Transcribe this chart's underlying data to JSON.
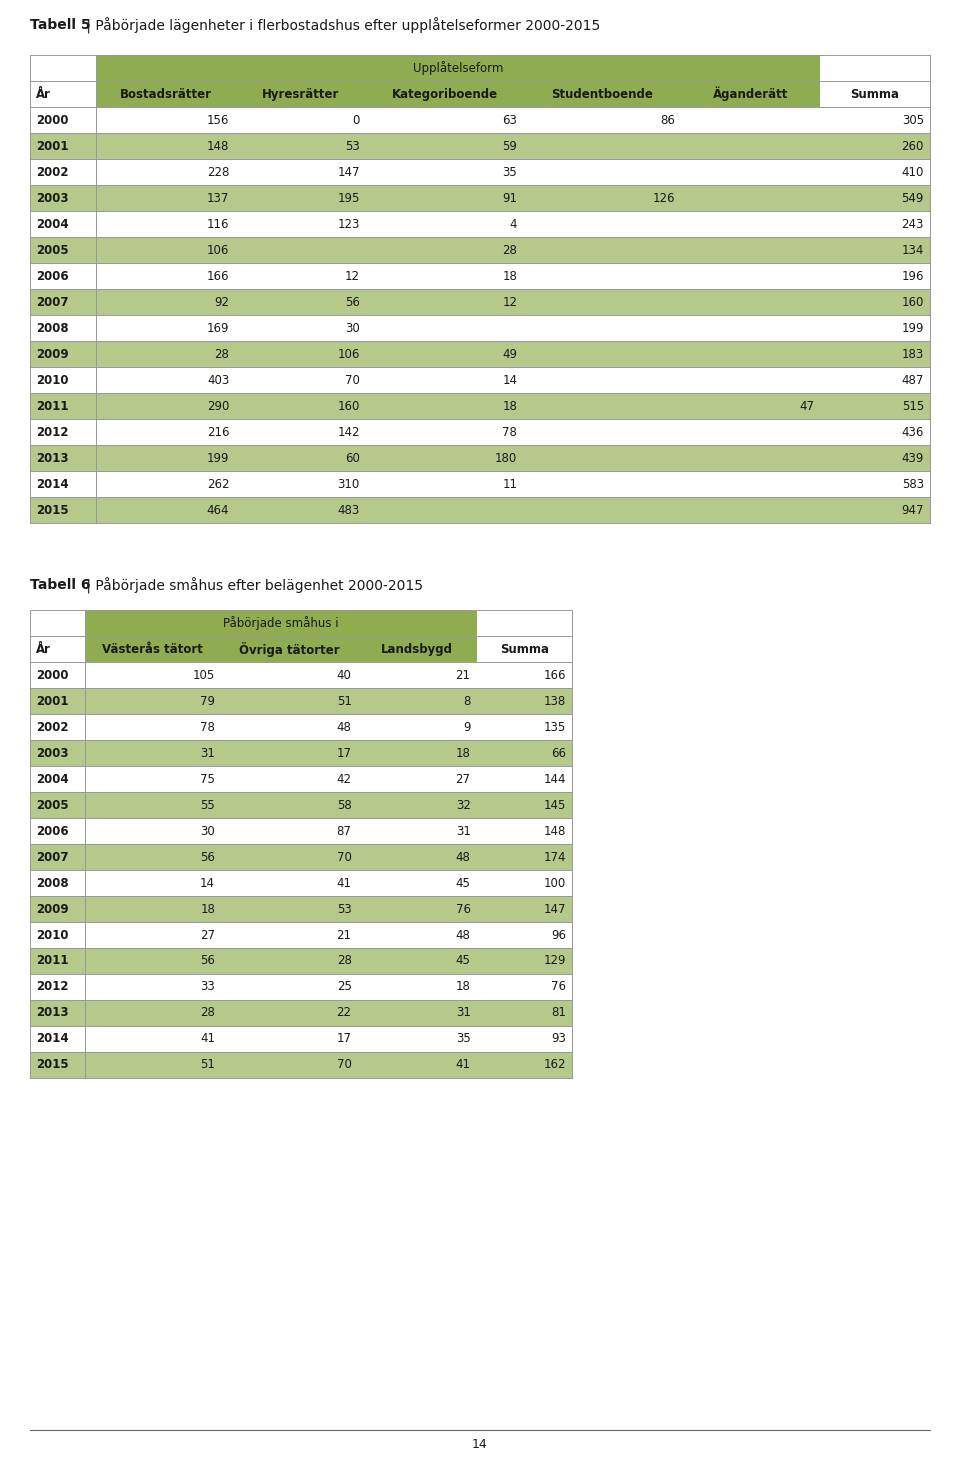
{
  "title1_bold": "Tabell 5",
  "title1_normal": " | Påbörjade lägenheter i flerbostadshus efter upplåtelseformer 2000-2015",
  "title2_bold": "Tabell 6",
  "title2_normal": " | Påbörjade småhus efter belägenhet 2000-2015",
  "table1_super_header": "Upplåtelseform",
  "table1_col_headers": [
    "År",
    "Bostadsrätter",
    "Hyresrätter",
    "Kategoriboende",
    "Studentboende",
    "Äganderätt",
    "Summa"
  ],
  "table1_data": [
    [
      "2000",
      "156",
      "0",
      "63",
      "86",
      "",
      "305"
    ],
    [
      "2001",
      "148",
      "53",
      "59",
      "",
      "",
      "260"
    ],
    [
      "2002",
      "228",
      "147",
      "35",
      "",
      "",
      "410"
    ],
    [
      "2003",
      "137",
      "195",
      "91",
      "126",
      "",
      "549"
    ],
    [
      "2004",
      "116",
      "123",
      "4",
      "",
      "",
      "243"
    ],
    [
      "2005",
      "106",
      "",
      "28",
      "",
      "",
      "134"
    ],
    [
      "2006",
      "166",
      "12",
      "18",
      "",
      "",
      "196"
    ],
    [
      "2007",
      "92",
      "56",
      "12",
      "",
      "",
      "160"
    ],
    [
      "2008",
      "169",
      "30",
      "",
      "",
      "",
      "199"
    ],
    [
      "2009",
      "28",
      "106",
      "49",
      "",
      "",
      "183"
    ],
    [
      "2010",
      "403",
      "70",
      "14",
      "",
      "",
      "487"
    ],
    [
      "2011",
      "290",
      "160",
      "18",
      "",
      "47",
      "515"
    ],
    [
      "2012",
      "216",
      "142",
      "78",
      "",
      "",
      "436"
    ],
    [
      "2013",
      "199",
      "60",
      "180",
      "",
      "",
      "439"
    ],
    [
      "2014",
      "262",
      "310",
      "11",
      "",
      "",
      "583"
    ],
    [
      "2015",
      "464",
      "483",
      "",
      "",
      "",
      "947"
    ]
  ],
  "table2_super_header": "Påbörjade småhus i",
  "table2_col_headers": [
    "År",
    "Västerås tätort",
    "Övriga tätorter",
    "Landsbygd",
    "Summa"
  ],
  "table2_data": [
    [
      "2000",
      "105",
      "40",
      "21",
      "166"
    ],
    [
      "2001",
      "79",
      "51",
      "8",
      "138"
    ],
    [
      "2002",
      "78",
      "48",
      "9",
      "135"
    ],
    [
      "2003",
      "31",
      "17",
      "18",
      "66"
    ],
    [
      "2004",
      "75",
      "42",
      "27",
      "144"
    ],
    [
      "2005",
      "55",
      "58",
      "32",
      "145"
    ],
    [
      "2006",
      "30",
      "87",
      "31",
      "148"
    ],
    [
      "2007",
      "56",
      "70",
      "48",
      "174"
    ],
    [
      "2008",
      "14",
      "41",
      "45",
      "100"
    ],
    [
      "2009",
      "18",
      "53",
      "76",
      "147"
    ],
    [
      "2010",
      "27",
      "21",
      "48",
      "96"
    ],
    [
      "2011",
      "56",
      "28",
      "45",
      "129"
    ],
    [
      "2012",
      "33",
      "25",
      "18",
      "76"
    ],
    [
      "2013",
      "28",
      "22",
      "31",
      "81"
    ],
    [
      "2014",
      "41",
      "17",
      "35",
      "93"
    ],
    [
      "2015",
      "51",
      "70",
      "41",
      "162"
    ]
  ],
  "color_light_green": "#b5c98a",
  "color_header_green": "#8fad50",
  "color_white": "#ffffff",
  "color_text": "#1a1a1a",
  "color_line": "#999999",
  "page_number": "14",
  "fig_width": 9.6,
  "fig_height": 14.58,
  "dpi": 100
}
